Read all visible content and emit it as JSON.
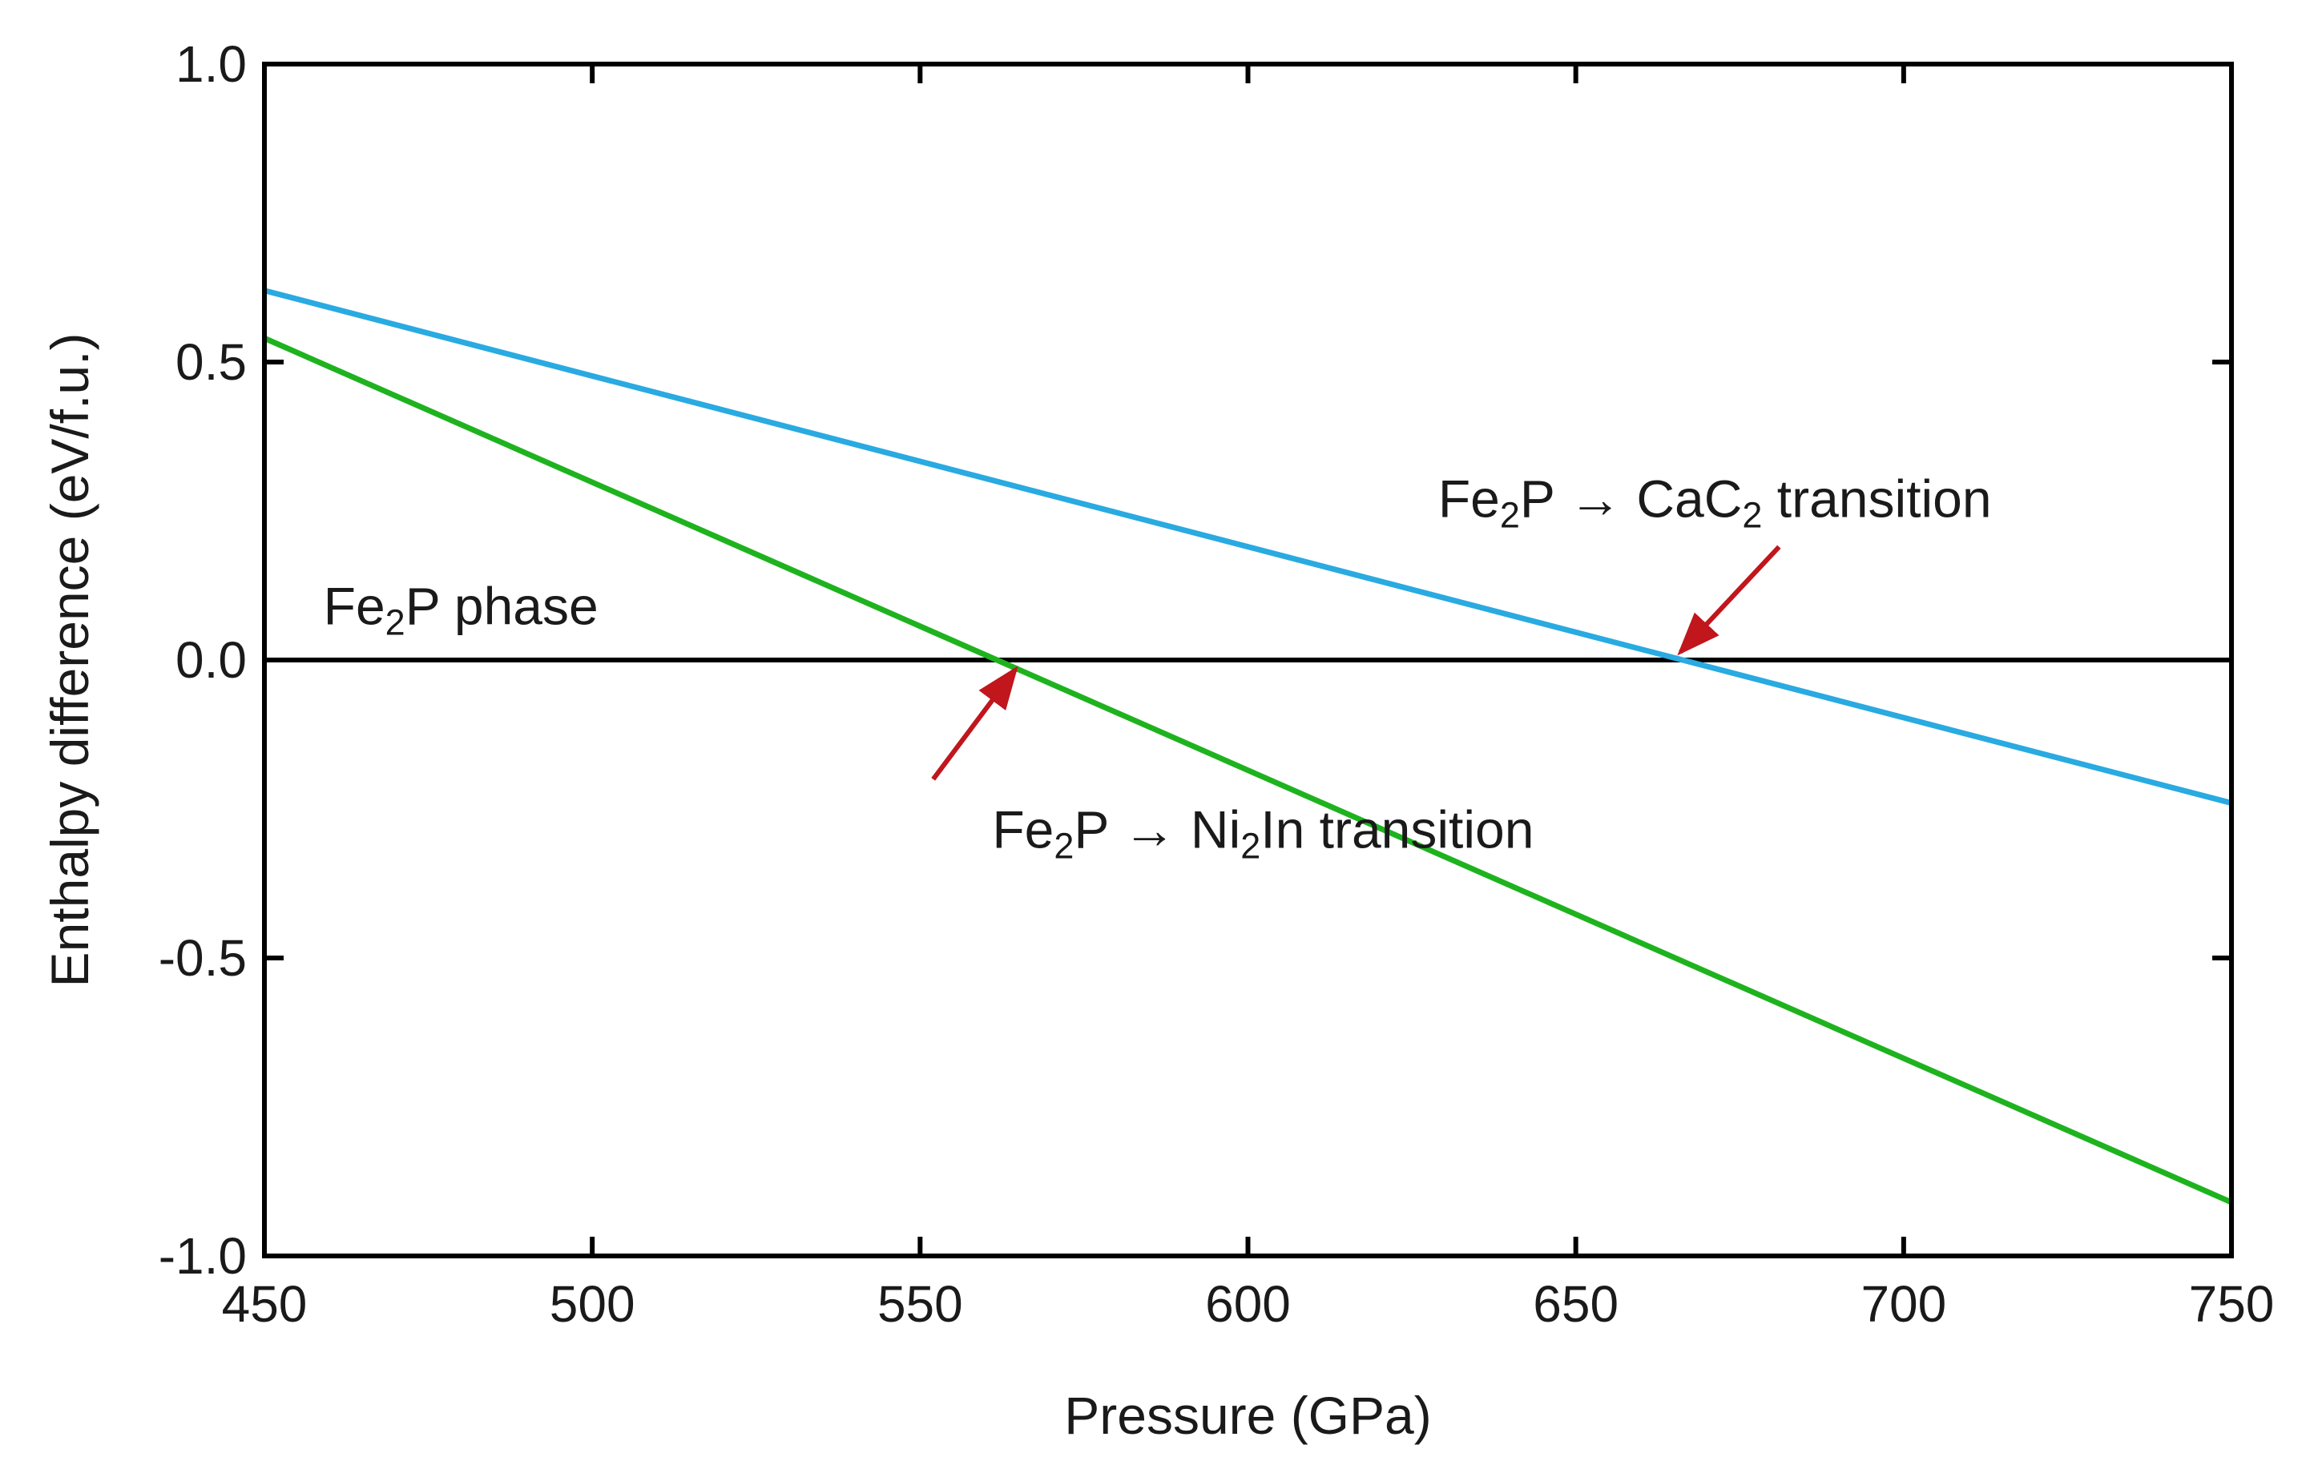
{
  "chart_data": {
    "type": "line",
    "xlabel": "Pressure (GPa)",
    "ylabel": "Enthalpy difference (eV/f.u.)",
    "xlim": [
      450,
      750
    ],
    "ylim": [
      -1.0,
      1.0
    ],
    "x_ticks": [
      450,
      500,
      550,
      600,
      650,
      700,
      750
    ],
    "x_tick_labels": [
      "450",
      "500",
      "550",
      "600",
      "650",
      "700",
      "750"
    ],
    "y_ticks": [
      1.0,
      0.5,
      0.0,
      -0.5,
      -1.0
    ],
    "y_tick_labels": [
      "1.0",
      "0.5",
      "0.0",
      "-0.5",
      "-1.0"
    ],
    "grid": false,
    "series": [
      {
        "name": "Fe2P phase",
        "color": "#000000",
        "x": [
          450,
          750
        ],
        "values": [
          0.0,
          0.0
        ]
      },
      {
        "name": "CaC2",
        "color": "#29aae1",
        "x": [
          450,
          750
        ],
        "values": [
          0.62,
          -0.24
        ]
      },
      {
        "name": "Ni2In",
        "color": "#1eb31e",
        "x": [
          450,
          750
        ],
        "values": [
          0.54,
          -0.91
        ]
      }
    ],
    "annotations": {
      "fe2p_phase": {
        "parts": [
          "Fe",
          "2",
          "P phase"
        ]
      },
      "cac2_transition": {
        "parts": [
          "Fe",
          "2",
          "P → CaC",
          "2",
          " transition"
        ],
        "arrow_color": "#c0161c",
        "points_to": [
          665,
          0.0
        ]
      },
      "ni2in_transition": {
        "parts": [
          "Fe",
          "2",
          "P → Ni",
          "2",
          "In transition"
        ],
        "arrow_color": "#c0161c",
        "points_to": [
          565,
          0.0
        ]
      }
    }
  }
}
